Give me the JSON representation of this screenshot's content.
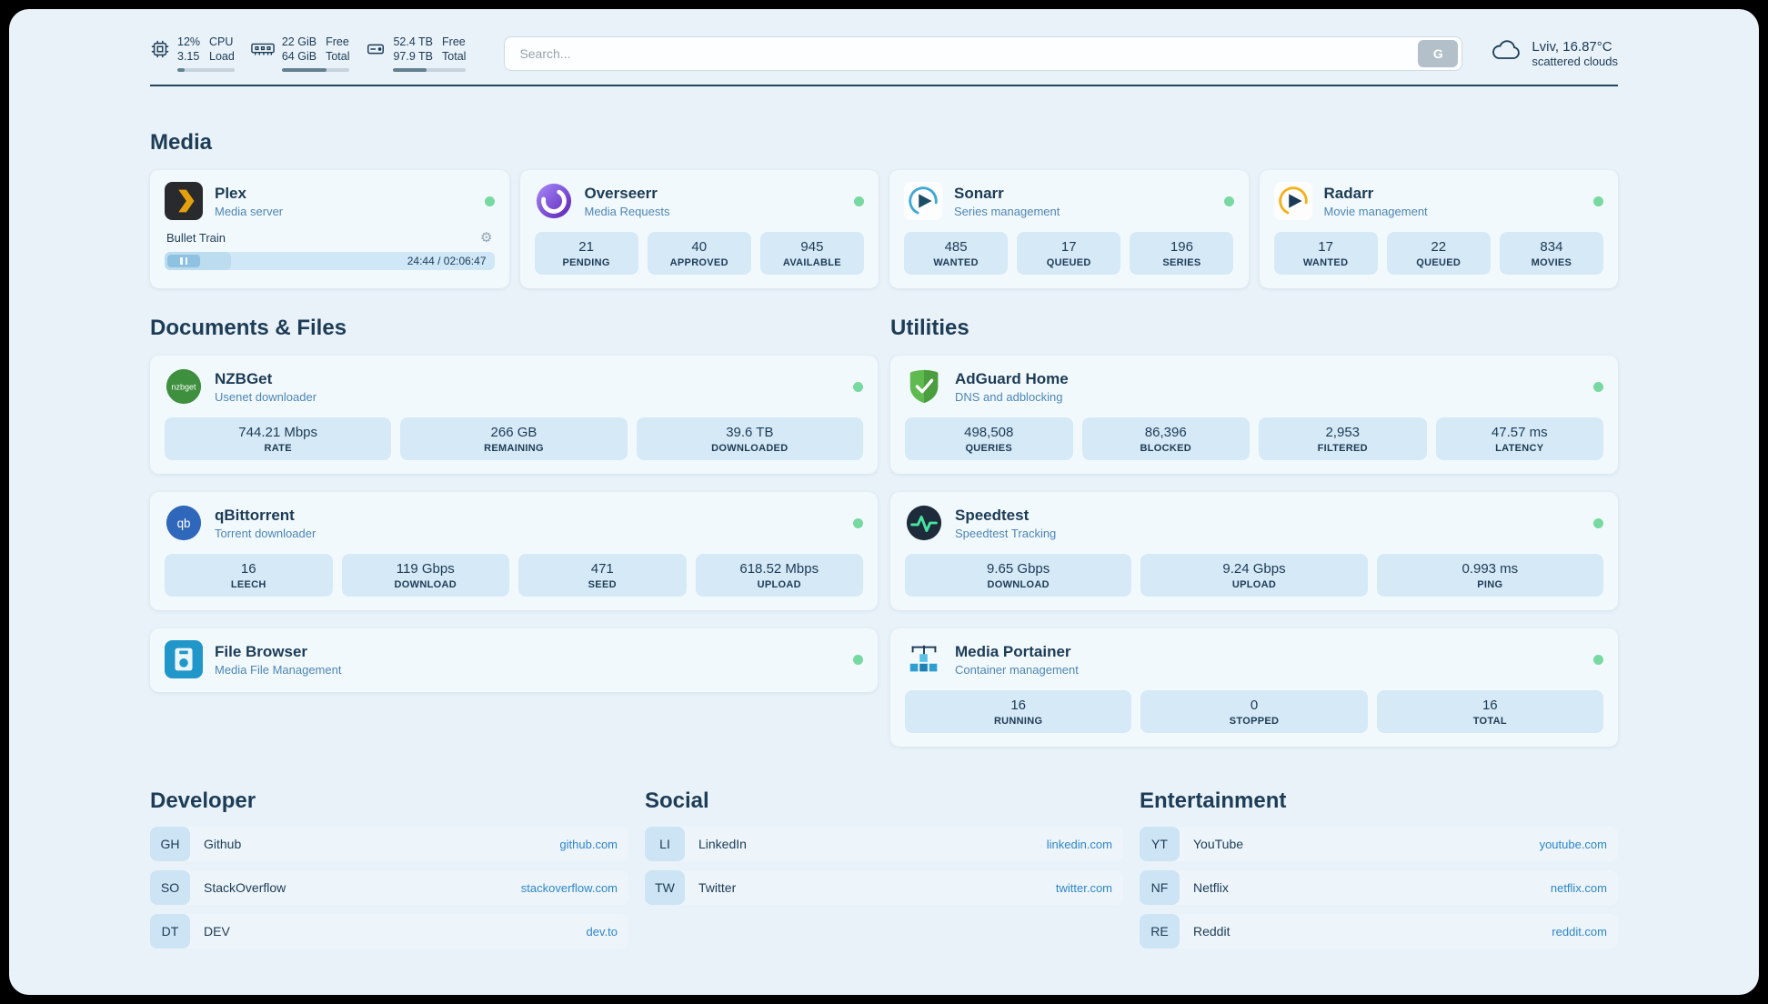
{
  "theme": {
    "background": "#e9f2f9",
    "card": "#f2f9fd",
    "tile": "#d6e9f7",
    "text": "#1c3b55",
    "subtitle": "#4d86b4",
    "link": "#2e86c9",
    "status_green": "#77d9a0"
  },
  "icons": {
    "gear": "⚙"
  },
  "topbar": {
    "cpu": {
      "v1": "12%",
      "v2": "3.15",
      "l1": "CPU",
      "l2": "Load",
      "pct": 12
    },
    "ram": {
      "v1": "22 GiB",
      "v2": "64 GiB",
      "l1": "Free",
      "l2": "Total",
      "pct": 66
    },
    "disk": {
      "v1": "52.4 TB",
      "v2": "97.9 TB",
      "l1": "Free",
      "l2": "Total",
      "pct": 46
    },
    "search": {
      "placeholder": "Search...",
      "button_label": "G"
    },
    "weather": {
      "location": "Lviv, 16.87°C",
      "condition": "scattered clouds"
    }
  },
  "sections": {
    "media": "Media",
    "files": "Documents & Files",
    "utilities": "Utilities",
    "developer": "Developer",
    "social": "Social",
    "entertainment": "Entertainment"
  },
  "services": {
    "plex": {
      "name": "Plex",
      "subtitle": "Media server",
      "player": {
        "title": "Bullet Train",
        "time": "24:44 / 02:06:47",
        "pct": 20
      }
    },
    "overseerr": {
      "name": "Overseerr",
      "subtitle": "Media Requests",
      "stats": [
        {
          "v": "21",
          "l": "PENDING"
        },
        {
          "v": "40",
          "l": "APPROVED"
        },
        {
          "v": "945",
          "l": "AVAILABLE"
        }
      ]
    },
    "sonarr": {
      "name": "Sonarr",
      "subtitle": "Series management",
      "stats": [
        {
          "v": "485",
          "l": "WANTED"
        },
        {
          "v": "17",
          "l": "QUEUED"
        },
        {
          "v": "196",
          "l": "SERIES"
        }
      ]
    },
    "radarr": {
      "name": "Radarr",
      "subtitle": "Movie management",
      "stats": [
        {
          "v": "17",
          "l": "WANTED"
        },
        {
          "v": "22",
          "l": "QUEUED"
        },
        {
          "v": "834",
          "l": "MOVIES"
        }
      ]
    },
    "nzbget": {
      "name": "NZBGet",
      "subtitle": "Usenet downloader",
      "stats": [
        {
          "v": "744.21 Mbps",
          "l": "RATE"
        },
        {
          "v": "266 GB",
          "l": "REMAINING"
        },
        {
          "v": "39.6 TB",
          "l": "DOWNLOADED"
        }
      ]
    },
    "qbittorrent": {
      "name": "qBittorrent",
      "subtitle": "Torrent downloader",
      "stats": [
        {
          "v": "16",
          "l": "LEECH"
        },
        {
          "v": "119 Gbps",
          "l": "DOWNLOAD"
        },
        {
          "v": "471",
          "l": "SEED"
        },
        {
          "v": "618.52 Mbps",
          "l": "UPLOAD"
        }
      ]
    },
    "filebrowser": {
      "name": "File Browser",
      "subtitle": "Media File Management"
    },
    "adguard": {
      "name": "AdGuard Home",
      "subtitle": "DNS and adblocking",
      "stats": [
        {
          "v": "498,508",
          "l": "QUERIES"
        },
        {
          "v": "86,396",
          "l": "BLOCKED"
        },
        {
          "v": "2,953",
          "l": "FILTERED"
        },
        {
          "v": "47.57 ms",
          "l": "LATENCY"
        }
      ]
    },
    "speedtest": {
      "name": "Speedtest",
      "subtitle": "Speedtest Tracking",
      "stats": [
        {
          "v": "9.65 Gbps",
          "l": "DOWNLOAD"
        },
        {
          "v": "9.24 Gbps",
          "l": "UPLOAD"
        },
        {
          "v": "0.993 ms",
          "l": "PING"
        }
      ]
    },
    "portainer": {
      "name": "Media Portainer",
      "subtitle": "Container management",
      "stats": [
        {
          "v": "16",
          "l": "RUNNING"
        },
        {
          "v": "0",
          "l": "STOPPED"
        },
        {
          "v": "16",
          "l": "TOTAL"
        }
      ]
    }
  },
  "bookmarks": {
    "developer": [
      {
        "abbr": "GH",
        "name": "Github",
        "url": "github.com"
      },
      {
        "abbr": "SO",
        "name": "StackOverflow",
        "url": "stackoverflow.com"
      },
      {
        "abbr": "DT",
        "name": "DEV",
        "url": "dev.to"
      }
    ],
    "social": [
      {
        "abbr": "LI",
        "name": "LinkedIn",
        "url": "linkedin.com"
      },
      {
        "abbr": "TW",
        "name": "Twitter",
        "url": "twitter.com"
      }
    ],
    "entertainment": [
      {
        "abbr": "YT",
        "name": "YouTube",
        "url": "youtube.com"
      },
      {
        "abbr": "NF",
        "name": "Netflix",
        "url": "netflix.com"
      },
      {
        "abbr": "RE",
        "name": "Reddit",
        "url": "reddit.com"
      }
    ]
  }
}
